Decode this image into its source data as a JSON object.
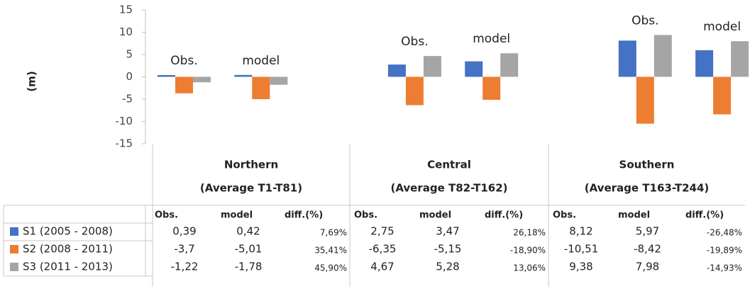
{
  "chart_data": {
    "type": "bar",
    "y_label": "(m)",
    "ylim": [
      -15,
      15
    ],
    "yticks": [
      -15,
      -10,
      -5,
      0,
      5,
      10,
      15
    ],
    "grid": false,
    "regions": [
      {
        "name": "Northern",
        "subtitle": "(Average T1-T81)"
      },
      {
        "name": "Central",
        "subtitle": "(Average T82-T162)"
      },
      {
        "name": "Southern",
        "subtitle": "(Average T163-T244)"
      }
    ],
    "categories": [
      "Obs.",
      "model",
      "Obs.",
      "model",
      "Obs.",
      "model"
    ],
    "table_columns": [
      "Obs.",
      "model",
      "diff.(%)"
    ],
    "series": [
      {
        "name": "S1 (2005 - 2008)",
        "color": "#4472c4",
        "values": [
          0.39,
          0.42,
          2.75,
          3.47,
          8.12,
          5.97
        ],
        "value_labels": [
          "0,39",
          "0,42",
          "2,75",
          "3,47",
          "8,12",
          "5,97"
        ],
        "diffs": [
          7.69,
          26.18,
          -26.48
        ],
        "diff_labels": [
          "7,69%",
          "26,18%",
          "-26,48%"
        ]
      },
      {
        "name": "S2 (2008 - 2011)",
        "color": "#ed7d31",
        "values": [
          -3.7,
          -5.01,
          -6.35,
          -5.15,
          -10.51,
          -8.42
        ],
        "value_labels": [
          "-3,7",
          "-5,01",
          "-6,35",
          "-5,15",
          "-10,51",
          "-8,42"
        ],
        "diffs": [
          35.41,
          -18.9,
          -19.89
        ],
        "diff_labels": [
          "35,41%",
          "-18,90%",
          "-19,89%"
        ]
      },
      {
        "name": "S3 (2011 - 2013)",
        "color": "#a5a5a5",
        "values": [
          -1.22,
          -1.78,
          4.67,
          5.28,
          9.38,
          7.98
        ],
        "value_labels": [
          "-1,22",
          "-1,78",
          "4,67",
          "5,28",
          "9,38",
          "7,98"
        ],
        "diffs": [
          45.9,
          13.06,
          -14.93
        ],
        "diff_labels": [
          "45,90%",
          "13,06%",
          "-14,93%"
        ]
      }
    ]
  }
}
